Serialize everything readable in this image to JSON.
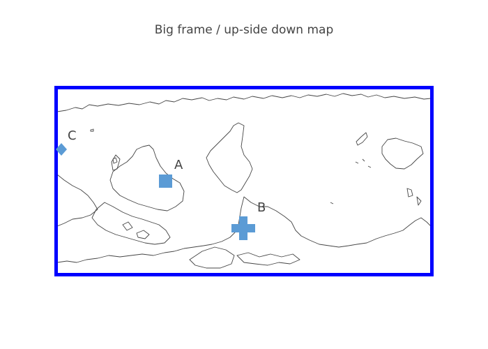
{
  "title": "Big frame / up-side down map",
  "map": {
    "projection": "equirectangular",
    "orientation": "upside-down",
    "frame_color": "#0000ff",
    "frame_width": "thick",
    "coastline_color": "#444444",
    "marker_color": "#5b9bd5"
  },
  "points": [
    {
      "label": "A",
      "symbol": "square"
    },
    {
      "label": "B",
      "symbol": "cross"
    },
    {
      "label": "C",
      "symbol": "diamond"
    }
  ]
}
